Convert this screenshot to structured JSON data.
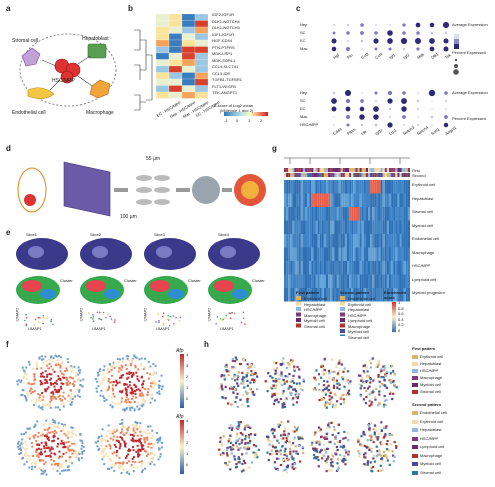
{
  "panels": {
    "a": {
      "letter": "a",
      "cells": [
        "Stromal cell",
        "Hepatoblast",
        "HSC/MPP",
        "Endothelial cell",
        "Macrophage"
      ]
    },
    "b": {
      "letter": "b",
      "pairs": [
        "IGF2-IGF1R",
        "DLK1-NOTCH4",
        "DLK1-NOTCH3",
        "IGF1-IGF1R",
        "HGF-CD44",
        "PTN-PTPRS",
        "MDK-LRP1",
        "MDK-SORL1",
        "CCL4-SLC7A1",
        "CCL3-IDE",
        "TGFB1-TGFBR1",
        "FLT1-VEGFB",
        "TEK-ANGPT1"
      ],
      "columns": [
        "EC - HSC/MPP",
        "Hep - HSC/MPP",
        "Mac - HSC/MPP",
        "SC - HSC/MPP"
      ],
      "legend_title": "Z-score of Log2 mean",
      "legend_sub": "(Molecule 1 and 2)",
      "legend_ticks": [
        "-1",
        "0",
        "1",
        "2"
      ]
    },
    "c": {
      "letter": "c",
      "rows_top": [
        "Hep",
        "SC",
        "EC",
        "Mac"
      ],
      "rows_bottom": [
        "Hep",
        "SC",
        "EC",
        "Mac",
        "HSC/MPP"
      ],
      "genes_top": [
        "Hgf",
        "Ptn",
        "Ccl3",
        "Ccl4",
        "Igf1",
        "Igf2",
        "Mdk",
        "Dlk1",
        "Tek"
      ],
      "genes_bottom": [
        "Cd44",
        "Ptprs",
        "Ide",
        "Igf1r",
        "Lrp1",
        "Notch3",
        "Notch4",
        "Sorl1",
        "Angpt1"
      ],
      "legend_avg": "Average Expression",
      "legend_pct": "Percent Expressed",
      "pct_ticks": [
        "25",
        "50",
        "75"
      ]
    },
    "d": {
      "letter": "d",
      "dim1": "55 µm",
      "dim2": "100 µm"
    },
    "e": {
      "letter": "e",
      "slices": [
        "Slice1",
        "Slice2",
        "Slice3",
        "Slice4"
      ],
      "cluster_label": "Cluster",
      "umap_x": "UMAP1",
      "umap_y": "UMAP2"
    },
    "f": {
      "letter": "f",
      "gene_top": "Afp",
      "gene_bottom": "Afp",
      "ticks": [
        "4",
        "3",
        "2",
        "1",
        "0"
      ]
    },
    "g": {
      "letter": "g",
      "track_first": "First",
      "track_second": "Second",
      "rows": [
        "Erythroid cell",
        "Hepatoblast",
        "Stromal cell",
        "Myeloid cell",
        "Endothelial cell",
        "Macrophage",
        "HSC/MPP",
        "Lymphoid cell",
        "Myeloid progenitor"
      ],
      "legend_first_title": "First pattern",
      "legend_first": [
        "Erythroid cell",
        "Hepatoblast",
        "HSC/MPP",
        "Macrophage",
        "Myeloid cell",
        "Stromal cell"
      ],
      "legend_second_title": "Second pattern",
      "legend_second": [
        "Endothelial cell",
        "Erythroid cell",
        "Hepatoblast",
        "HSC/MPP",
        "Lymphoid cell",
        "Macrophage",
        "Myeloid cell",
        "Stromal cell"
      ],
      "score_title": "Enrichment score",
      "score_ticks": [
        "1",
        "0.8",
        "0.6",
        "0.4",
        "0.2",
        "0"
      ]
    },
    "h": {
      "letter": "h",
      "first_title": "First pattern",
      "first_items": [
        "Erythroid cell",
        "Hepatoblast",
        "HSC/MPP",
        "Macrophage",
        "Myeloid cell",
        "Stromal cell"
      ],
      "second_title": "Second pattern",
      "second_items": [
        "Endothelial cell",
        "Erythroid cell",
        "Hepatoblast",
        "HSC/MPP",
        "Lymphoid cell",
        "Macrophage",
        "Myeloid cell",
        "Stromal cell"
      ]
    }
  },
  "colors": {
    "erythroid": "#d9b36a",
    "hepatoblast": "#f2d9a6",
    "hsc": "#8fb7e0",
    "macrophage": "#7b3b7d",
    "myeloid": "#6a2a6a",
    "stromal": "#b0322e",
    "endothelial": "#4a4aa0",
    "lymphoid": "#2c7a9a",
    "heat_low": "#2a6fb3",
    "heat_high": "#d73027"
  }
}
